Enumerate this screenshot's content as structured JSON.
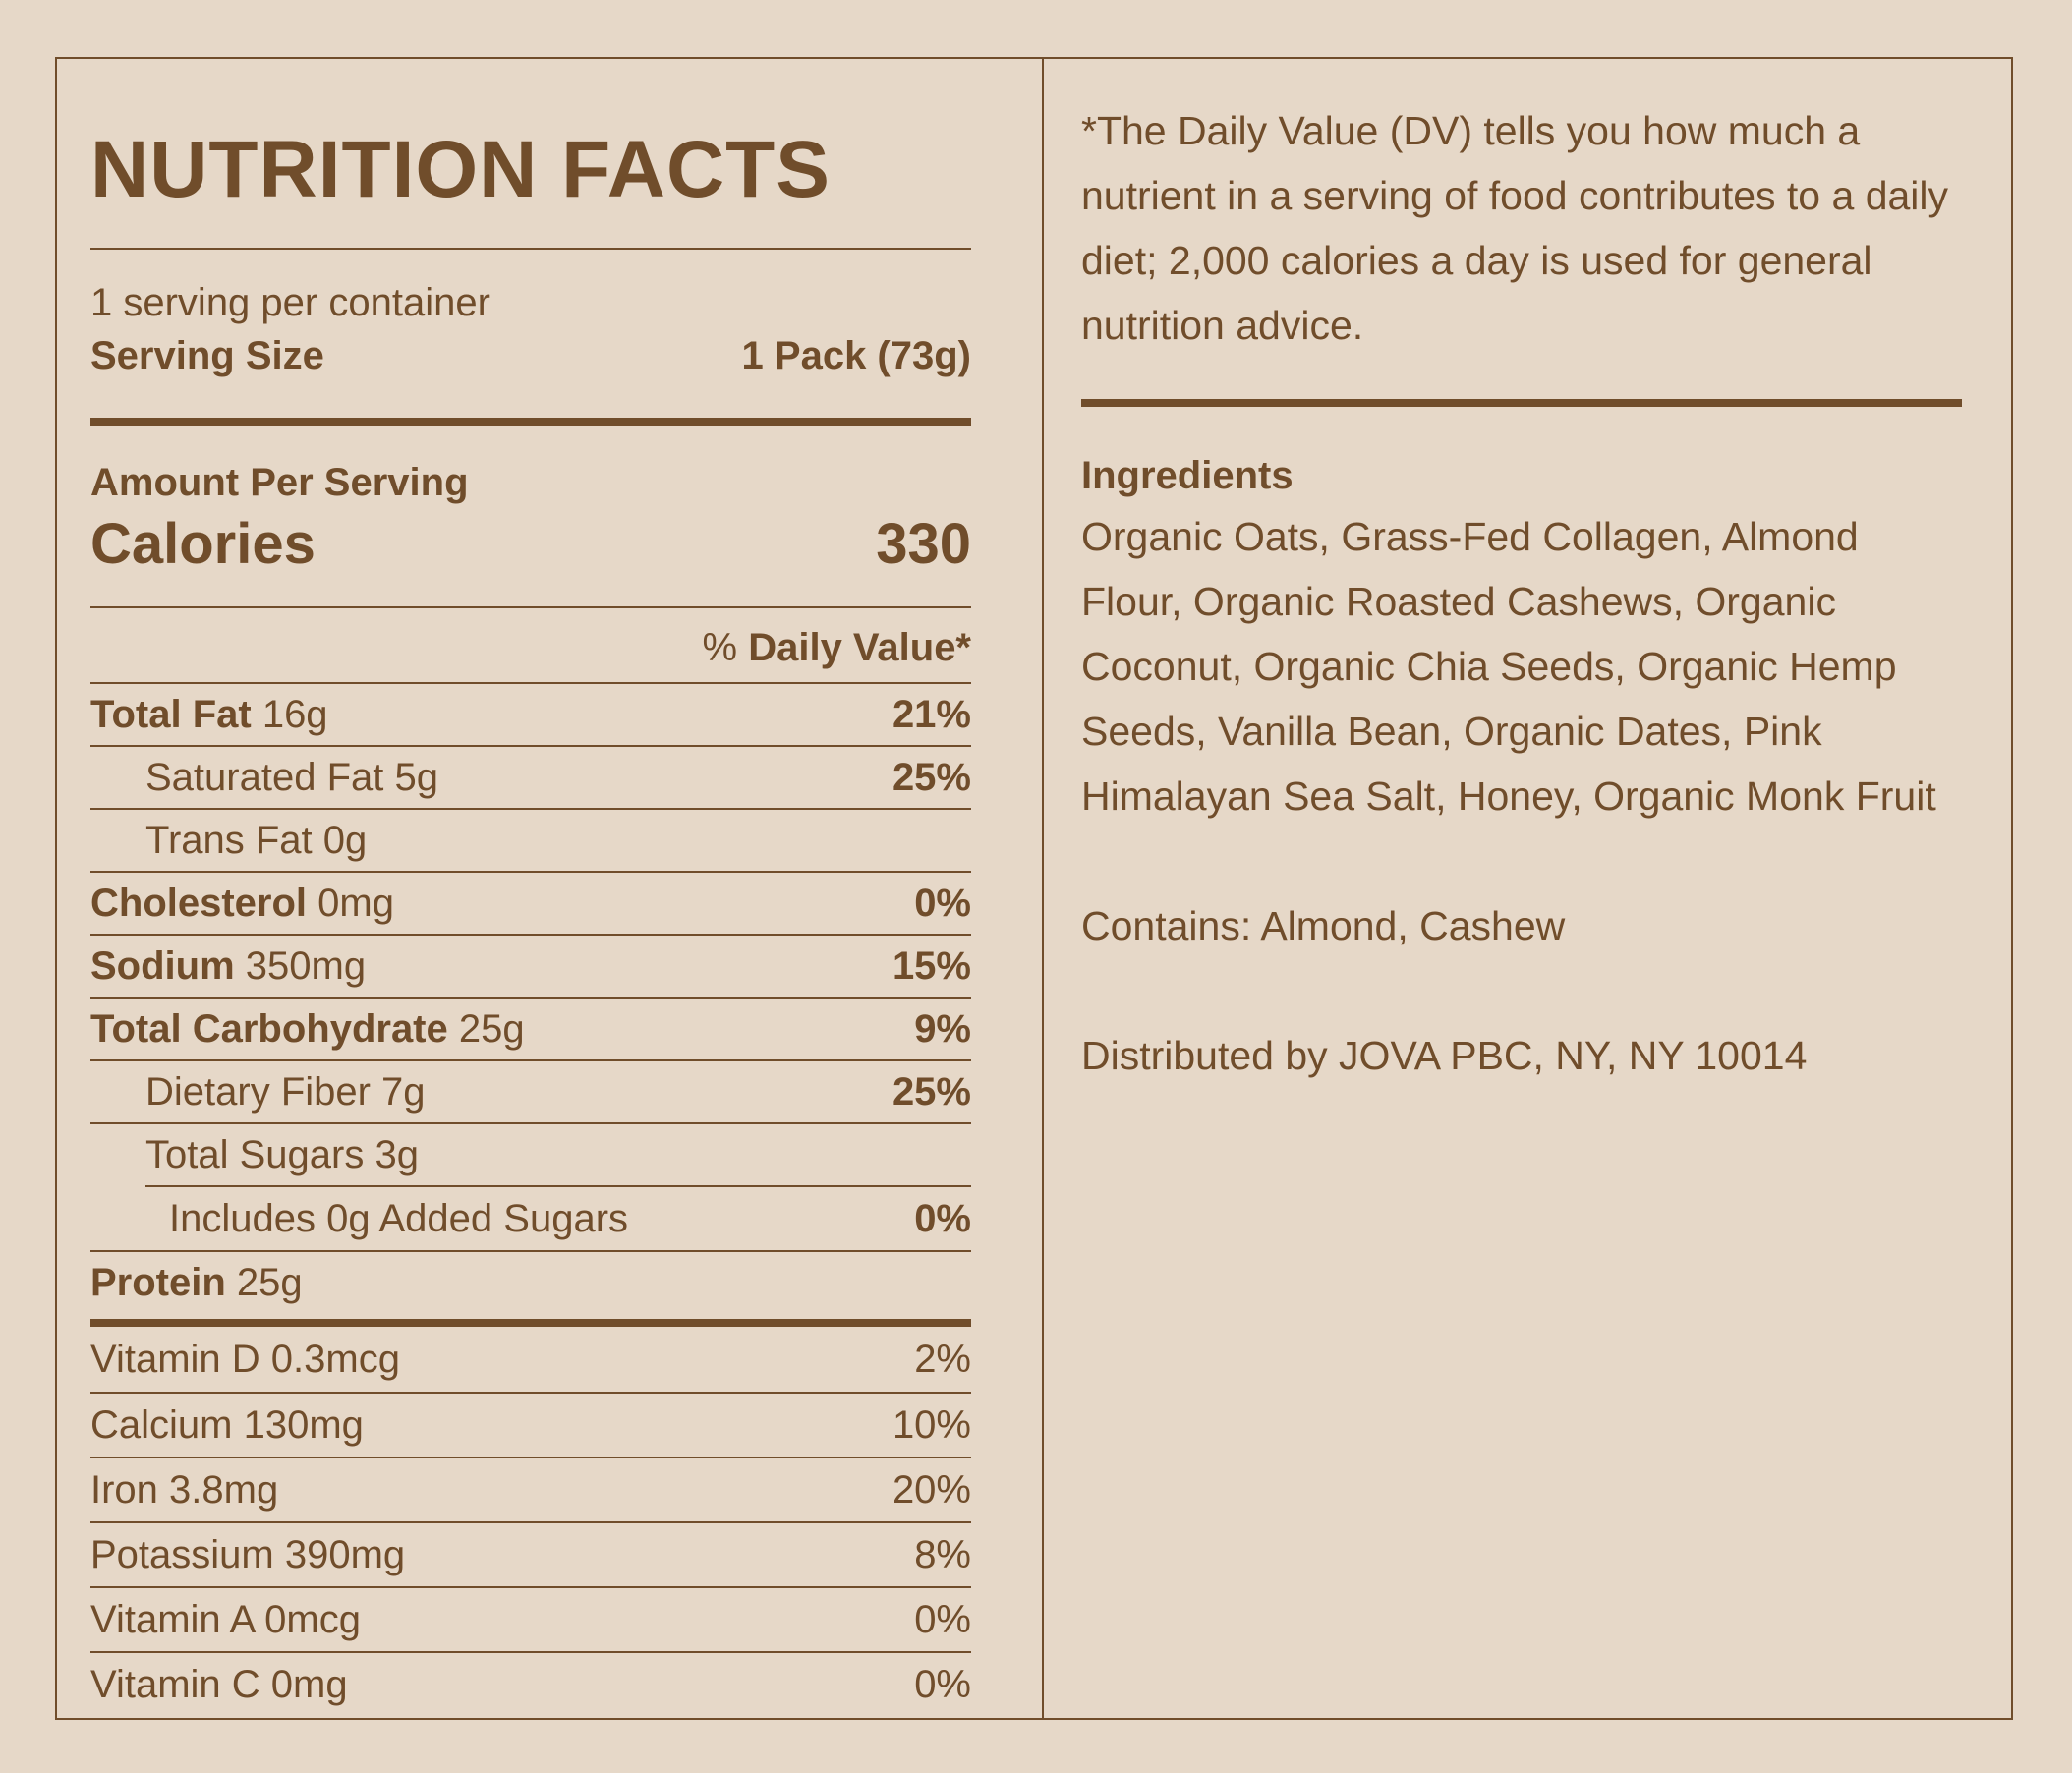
{
  "left": {
    "title": "NUTRITION FACTS",
    "servings_per_container": "1 serving per container",
    "serving_size_label": "Serving Size",
    "serving_size_value": "1 Pack (73g)",
    "amount_per_serving": "Amount Per Serving",
    "calories_label": "Calories",
    "calories_value": "330",
    "dv_prefix": "% ",
    "dv_label": "Daily Value*",
    "nutrients": [
      {
        "name": "Total Fat",
        "amount": " 16g",
        "dv": "21%"
      },
      {
        "name": "Saturated Fat 5g",
        "amount": "",
        "dv": "25%"
      },
      {
        "name": "Trans Fat 0g",
        "amount": "",
        "dv": ""
      },
      {
        "name": "Cholesterol",
        "amount": " 0mg",
        "dv": "0%"
      },
      {
        "name": "Sodium",
        "amount": " 350mg",
        "dv": "15%"
      },
      {
        "name": "Total Carbohydrate",
        "amount": " 25g",
        "dv": "9%"
      },
      {
        "name": "Dietary Fiber 7g",
        "amount": "",
        "dv": "25%"
      },
      {
        "name": "Total Sugars 3g",
        "amount": "",
        "dv": ""
      },
      {
        "name": "Includes 0g Added Sugars",
        "amount": "",
        "dv": "0%"
      },
      {
        "name": "Protein",
        "amount": " 25g",
        "dv": ""
      }
    ],
    "vitamins": [
      {
        "name": "Vitamin D 0.3mcg",
        "dv": "2%"
      },
      {
        "name": "Calcium 130mg",
        "dv": "10%"
      },
      {
        "name": "Iron 3.8mg",
        "dv": "20%"
      },
      {
        "name": "Potassium 390mg",
        "dv": "8%"
      },
      {
        "name": "Vitamin A 0mcg",
        "dv": "0%"
      },
      {
        "name": "Vitamin C 0mg",
        "dv": "0%"
      }
    ]
  },
  "right": {
    "footnote": "*The Daily Value (DV) tells you how much a nutrient in a serving of food contributes to a daily diet; 2,000 calories a day is used for general nutrition advice.",
    "ingredients_title": "Ingredients",
    "ingredients": "Organic Oats, Grass-Fed Collagen, Almond Flour, Organic Roasted Cashews, Organic Coconut, Organic Chia Seeds, Organic Hemp Seeds, Vanilla Bean, Organic Dates, Pink Himalayan Sea Salt, Honey, Organic Monk Fruit",
    "contains": "Contains: Almond, Cashew",
    "distributed": "Distributed by JOVA PBC, NY, NY 10014"
  },
  "colors": {
    "background": "#e6d8c8",
    "ink": "#704d2b"
  }
}
